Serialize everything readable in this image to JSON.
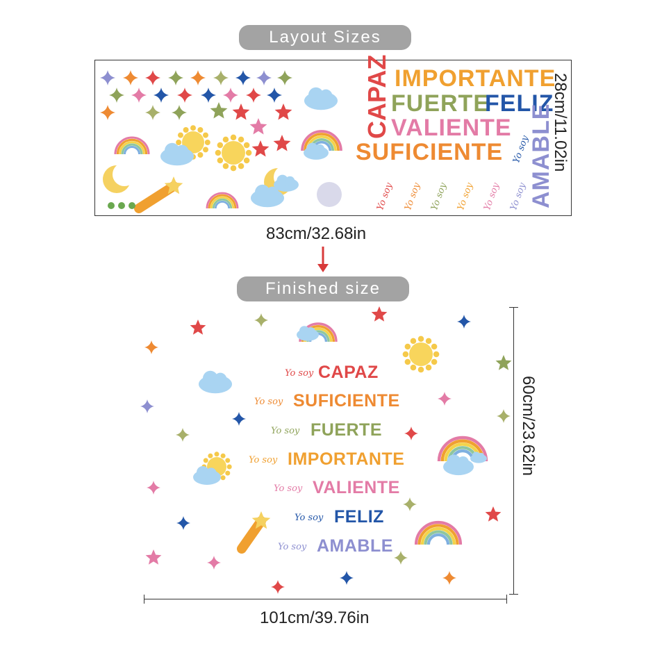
{
  "labels": {
    "layout": "Layout Sizes",
    "finished": "Finished size"
  },
  "dimensions": {
    "sheet_height": "28cm/11.02in",
    "sheet_width": "83cm/32.68in",
    "finished_height": "60cm/23.62in",
    "finished_width": "101cm/39.76in"
  },
  "prefix": "Yo soy",
  "words": [
    {
      "text": "CAPAZ",
      "color": "#e04848"
    },
    {
      "text": "SUFICIENTE",
      "color": "#ee8a32"
    },
    {
      "text": "FUERTE",
      "color": "#8fa35a"
    },
    {
      "text": "IMPORTANTE",
      "color": "#f0a030"
    },
    {
      "text": "VALIENTE",
      "color": "#e37ba6"
    },
    {
      "text": "FELIZ",
      "color": "#2356a8"
    },
    {
      "text": "AMABLE",
      "color": "#8d8fd0"
    }
  ],
  "palette": [
    "#e04848",
    "#ee8a32",
    "#8fa35a",
    "#2356a8",
    "#e37ba6",
    "#8d8fd0",
    "#a8b06a"
  ],
  "arrow_color": "#d83a3a"
}
